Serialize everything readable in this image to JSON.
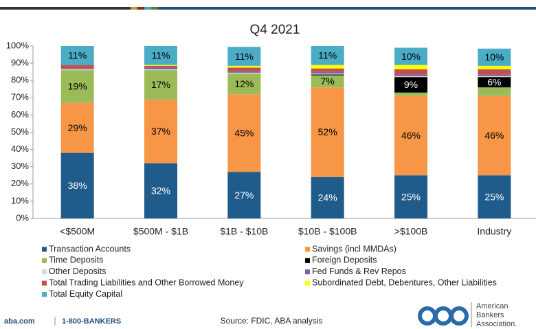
{
  "chart_data": {
    "type": "stacked_bar",
    "title": "Q4 2021",
    "categories": [
      "<$500M",
      "$500M - $1B",
      "$1B - $10B",
      "$10B - $100B",
      ">$100B",
      "Industry"
    ],
    "series": [
      {
        "name": "Transaction Accounts",
        "color": "#1f5c8c",
        "values": [
          38,
          32,
          27,
          24,
          25,
          25
        ],
        "value_labels": [
          "38%",
          "32%",
          "27%",
          "24%",
          "25%",
          "25%"
        ]
      },
      {
        "name": "Savings (incl MMDAs)",
        "color": "#f79646",
        "values": [
          29,
          37,
          45,
          52,
          46,
          46
        ],
        "value_labels": [
          "29%",
          "37%",
          "45%",
          "52%",
          "46%",
          "46%"
        ]
      },
      {
        "name": "Time Deposits",
        "color": "#9bbb59",
        "values": [
          19,
          17,
          12,
          7,
          2,
          5
        ],
        "value_labels": [
          "19%",
          "17%",
          "12%",
          "7%",
          null,
          null
        ]
      },
      {
        "name": "Foreign Deposits",
        "color": "#000000",
        "values": [
          0,
          0,
          0,
          0.5,
          9,
          6
        ],
        "value_labels": [
          null,
          null,
          null,
          null,
          "9%",
          "6%"
        ]
      },
      {
        "name": "Other Deposits",
        "color": "#d9d9d9",
        "values": [
          0.5,
          0.5,
          0.5,
          0.5,
          0.5,
          0.5
        ]
      },
      {
        "name": "Fed Funds & Rev Repos",
        "color": "#8064a2",
        "values": [
          0.5,
          1,
          1,
          1,
          1,
          1
        ]
      },
      {
        "name": "Total Trading Liabilities and Other Borrowed Money",
        "color": "#c0504d",
        "values": [
          2,
          1,
          2,
          2,
          3,
          3
        ]
      },
      {
        "name": "Subordinated Debt, Debentures, Other Liabilities",
        "color": "#ffff00",
        "values": [
          0,
          0.5,
          1,
          2,
          2.5,
          2
        ]
      },
      {
        "name": "Total Equity Capital",
        "color": "#4bacc6",
        "values": [
          11,
          11,
          11,
          11,
          10,
          10
        ],
        "value_labels": [
          "11%",
          "11%",
          "11%",
          "11%",
          "10%",
          "10%"
        ]
      }
    ],
    "ylim": [
      0,
      100
    ],
    "yticks": [
      {
        "value": 0,
        "label": "0%"
      },
      {
        "value": 10,
        "label": "10%"
      },
      {
        "value": 20,
        "label": "20%"
      },
      {
        "value": 30,
        "label": "30%"
      },
      {
        "value": 40,
        "label": "40%"
      },
      {
        "value": 50,
        "label": "50%"
      },
      {
        "value": 60,
        "label": "60%"
      },
      {
        "value": 70,
        "label": "70%"
      },
      {
        "value": 80,
        "label": "80%"
      },
      {
        "value": 90,
        "label": "90%"
      },
      {
        "value": 100,
        "label": "100%"
      }
    ],
    "grid": false
  },
  "footer": {
    "site": "aba.com",
    "phone": "1-800-BANKERS",
    "source": "Source: FDIC, ABA analysis",
    "logo": [
      "American",
      "Bankers",
      "Association."
    ]
  }
}
